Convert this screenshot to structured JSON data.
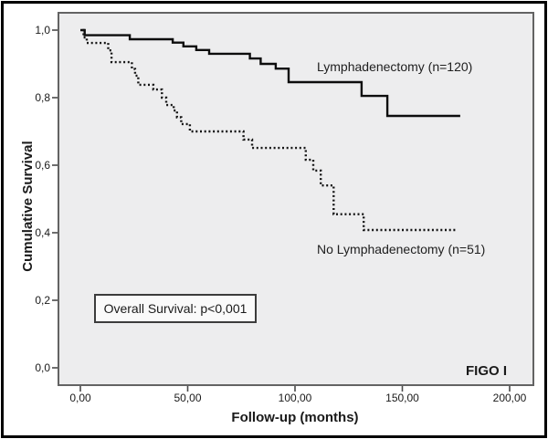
{
  "chart_data": {
    "type": "line",
    "subtype": "kaplan_meier_step",
    "title": "",
    "xlabel": "Follow-up (months)",
    "ylabel": "Cumulative Survival",
    "x_tick_labels": [
      "0,00",
      "50,00",
      "100,00",
      "150,00",
      "200,00"
    ],
    "y_tick_labels": [
      "0,0",
      "0,2",
      "0,4",
      "0,6",
      "0,8",
      "1,0"
    ],
    "xlim": [
      0,
      200
    ],
    "ylim": [
      0.0,
      1.0
    ],
    "grid": false,
    "legend_position": "inline-text-labels",
    "decimal_separator": ",",
    "annotation": "Overall Survival: p<0,001",
    "p_value": "p<0,001",
    "group_label": "FIGO I",
    "plot_background": "#ededee",
    "frame_color": "#636363",
    "curve_color": "#0d0d0d",
    "series": [
      {
        "name": "Lymphadenectomy (n=120)",
        "n": 120,
        "line_style": "solid",
        "color": "#0d0d0d",
        "points": [
          [
            0,
            1.0
          ],
          [
            2,
            0.985
          ],
          [
            23,
            0.973
          ],
          [
            43,
            0.963
          ],
          [
            48,
            0.952
          ],
          [
            54,
            0.941
          ],
          [
            60,
            0.93
          ],
          [
            79,
            0.916
          ],
          [
            84,
            0.9
          ],
          [
            91,
            0.886
          ],
          [
            97,
            0.846
          ],
          [
            131,
            0.805
          ],
          [
            143,
            0.746
          ],
          [
            177,
            0.746
          ]
        ]
      },
      {
        "name": "No Lymphadenectomy (n=51)",
        "n": 51,
        "line_style": "dotted",
        "color": "#141414",
        "points": [
          [
            1,
            1.0
          ],
          [
            1.5,
            0.978
          ],
          [
            3,
            0.962
          ],
          [
            13,
            0.94
          ],
          [
            14.5,
            0.905
          ],
          [
            24,
            0.885
          ],
          [
            25.5,
            0.865
          ],
          [
            27,
            0.838
          ],
          [
            34,
            0.824
          ],
          [
            38,
            0.8
          ],
          [
            40,
            0.778
          ],
          [
            43.5,
            0.762
          ],
          [
            45,
            0.742
          ],
          [
            47,
            0.722
          ],
          [
            51,
            0.7
          ],
          [
            76,
            0.676
          ],
          [
            80,
            0.651
          ],
          [
            105,
            0.616
          ],
          [
            108.5,
            0.584
          ],
          [
            112,
            0.54
          ],
          [
            118,
            0.455
          ],
          [
            132,
            0.408
          ],
          [
            175,
            0.408
          ]
        ]
      }
    ]
  }
}
